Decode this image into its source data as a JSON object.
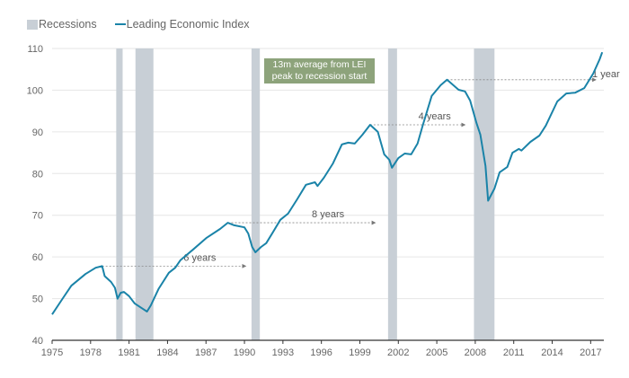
{
  "chart_data": {
    "type": "line",
    "title": "",
    "xlabel": "",
    "ylabel": "",
    "xlim": [
      1975,
      2018
    ],
    "ylim": [
      40,
      110
    ],
    "grid": "horizontal",
    "legend_position": "top-left",
    "legend": [
      {
        "label": "Recessions",
        "kind": "band"
      },
      {
        "label": "Leading Economic Index",
        "kind": "line"
      }
    ],
    "x_ticks": [
      "1975",
      "1978",
      "1981",
      "1984",
      "1987",
      "1990",
      "1993",
      "1996",
      "1999",
      "2002",
      "2005",
      "2008",
      "2011",
      "2014",
      "2017"
    ],
    "y_ticks": [
      40,
      50,
      60,
      70,
      80,
      90,
      100,
      110
    ],
    "colors": {
      "line": "#1a83a8",
      "recession": "#c8cfd6",
      "note_box": "#8da37b",
      "grid": "#e6e6e6",
      "axis": "#333333"
    },
    "recessions": [
      [
        1980.0,
        1980.5
      ],
      [
        1981.5,
        1982.9
      ],
      [
        1990.55,
        1991.2
      ],
      [
        2001.2,
        2001.9
      ],
      [
        2007.9,
        2009.5
      ]
    ],
    "series": [
      {
        "name": "Leading Economic Index",
        "points": [
          [
            1975.0,
            46.2
          ],
          [
            1975.8,
            49.9
          ],
          [
            1976.5,
            53.1
          ],
          [
            1977.6,
            55.9
          ],
          [
            1978.4,
            57.4
          ],
          [
            1978.9,
            57.8
          ],
          [
            1979.1,
            55.4
          ],
          [
            1979.6,
            54.0
          ],
          [
            1979.9,
            52.6
          ],
          [
            1980.1,
            50.0
          ],
          [
            1980.35,
            51.4
          ],
          [
            1980.6,
            51.6
          ],
          [
            1981.0,
            50.6
          ],
          [
            1981.45,
            48.8
          ],
          [
            1982.1,
            47.5
          ],
          [
            1982.4,
            46.9
          ],
          [
            1982.7,
            48.4
          ],
          [
            1983.3,
            52.3
          ],
          [
            1984.1,
            56.2
          ],
          [
            1984.6,
            57.4
          ],
          [
            1985.0,
            59.2
          ],
          [
            1986.0,
            61.8
          ],
          [
            1987.05,
            64.6
          ],
          [
            1988.1,
            66.7
          ],
          [
            1988.7,
            68.2
          ],
          [
            1989.2,
            67.6
          ],
          [
            1990.0,
            67.1
          ],
          [
            1990.3,
            65.6
          ],
          [
            1990.6,
            62.4
          ],
          [
            1990.85,
            61.1
          ],
          [
            1991.3,
            62.4
          ],
          [
            1991.7,
            63.3
          ],
          [
            1992.2,
            65.8
          ],
          [
            1992.8,
            68.9
          ],
          [
            1993.4,
            70.4
          ],
          [
            1994.1,
            73.8
          ],
          [
            1994.8,
            77.3
          ],
          [
            1995.5,
            77.9
          ],
          [
            1995.7,
            77.0
          ],
          [
            1996.2,
            79.0
          ],
          [
            1996.9,
            82.4
          ],
          [
            1997.6,
            87.0
          ],
          [
            1998.1,
            87.4
          ],
          [
            1998.6,
            87.2
          ],
          [
            1999.2,
            89.3
          ],
          [
            1999.8,
            91.7
          ],
          [
            2000.4,
            90.0
          ],
          [
            2000.9,
            84.6
          ],
          [
            2001.3,
            83.3
          ],
          [
            2001.5,
            81.4
          ],
          [
            2002.0,
            83.7
          ],
          [
            2002.5,
            84.8
          ],
          [
            2003.0,
            84.6
          ],
          [
            2003.5,
            87.2
          ],
          [
            2003.9,
            91.5
          ],
          [
            2004.6,
            98.6
          ],
          [
            2005.3,
            101.2
          ],
          [
            2005.8,
            102.5
          ],
          [
            2006.7,
            100.1
          ],
          [
            2007.2,
            99.7
          ],
          [
            2007.6,
            97.5
          ],
          [
            2008.1,
            92.1
          ],
          [
            2008.4,
            89.3
          ],
          [
            2008.8,
            81.8
          ],
          [
            2009.0,
            73.5
          ],
          [
            2009.5,
            76.4
          ],
          [
            2009.9,
            80.3
          ],
          [
            2010.5,
            81.6
          ],
          [
            2010.9,
            85.0
          ],
          [
            2011.4,
            85.9
          ],
          [
            2011.6,
            85.5
          ],
          [
            2012.3,
            87.6
          ],
          [
            2013.0,
            89.1
          ],
          [
            2013.5,
            91.5
          ],
          [
            2014.4,
            97.3
          ],
          [
            2015.1,
            99.2
          ],
          [
            2015.8,
            99.4
          ],
          [
            2016.5,
            100.5
          ],
          [
            2017.2,
            104.0
          ],
          [
            2017.7,
            107.4
          ],
          [
            2017.9,
            109.1
          ]
        ]
      }
    ],
    "annotations": [
      {
        "label": "6 years",
        "from": 1978.9,
        "to": 1990.1,
        "value": 57.8
      },
      {
        "label": "8 years",
        "from": 1988.7,
        "to": 2000.2,
        "value": 68.2
      },
      {
        "label": "4 years",
        "from": 1999.8,
        "to": 2007.2,
        "value": 91.7
      },
      {
        "label": "1 year",
        "from": 2005.8,
        "to": 2017.4,
        "value": 102.5
      }
    ],
    "note_box": {
      "line1": "13m average from LEI",
      "line2": "peak to recession start"
    }
  }
}
